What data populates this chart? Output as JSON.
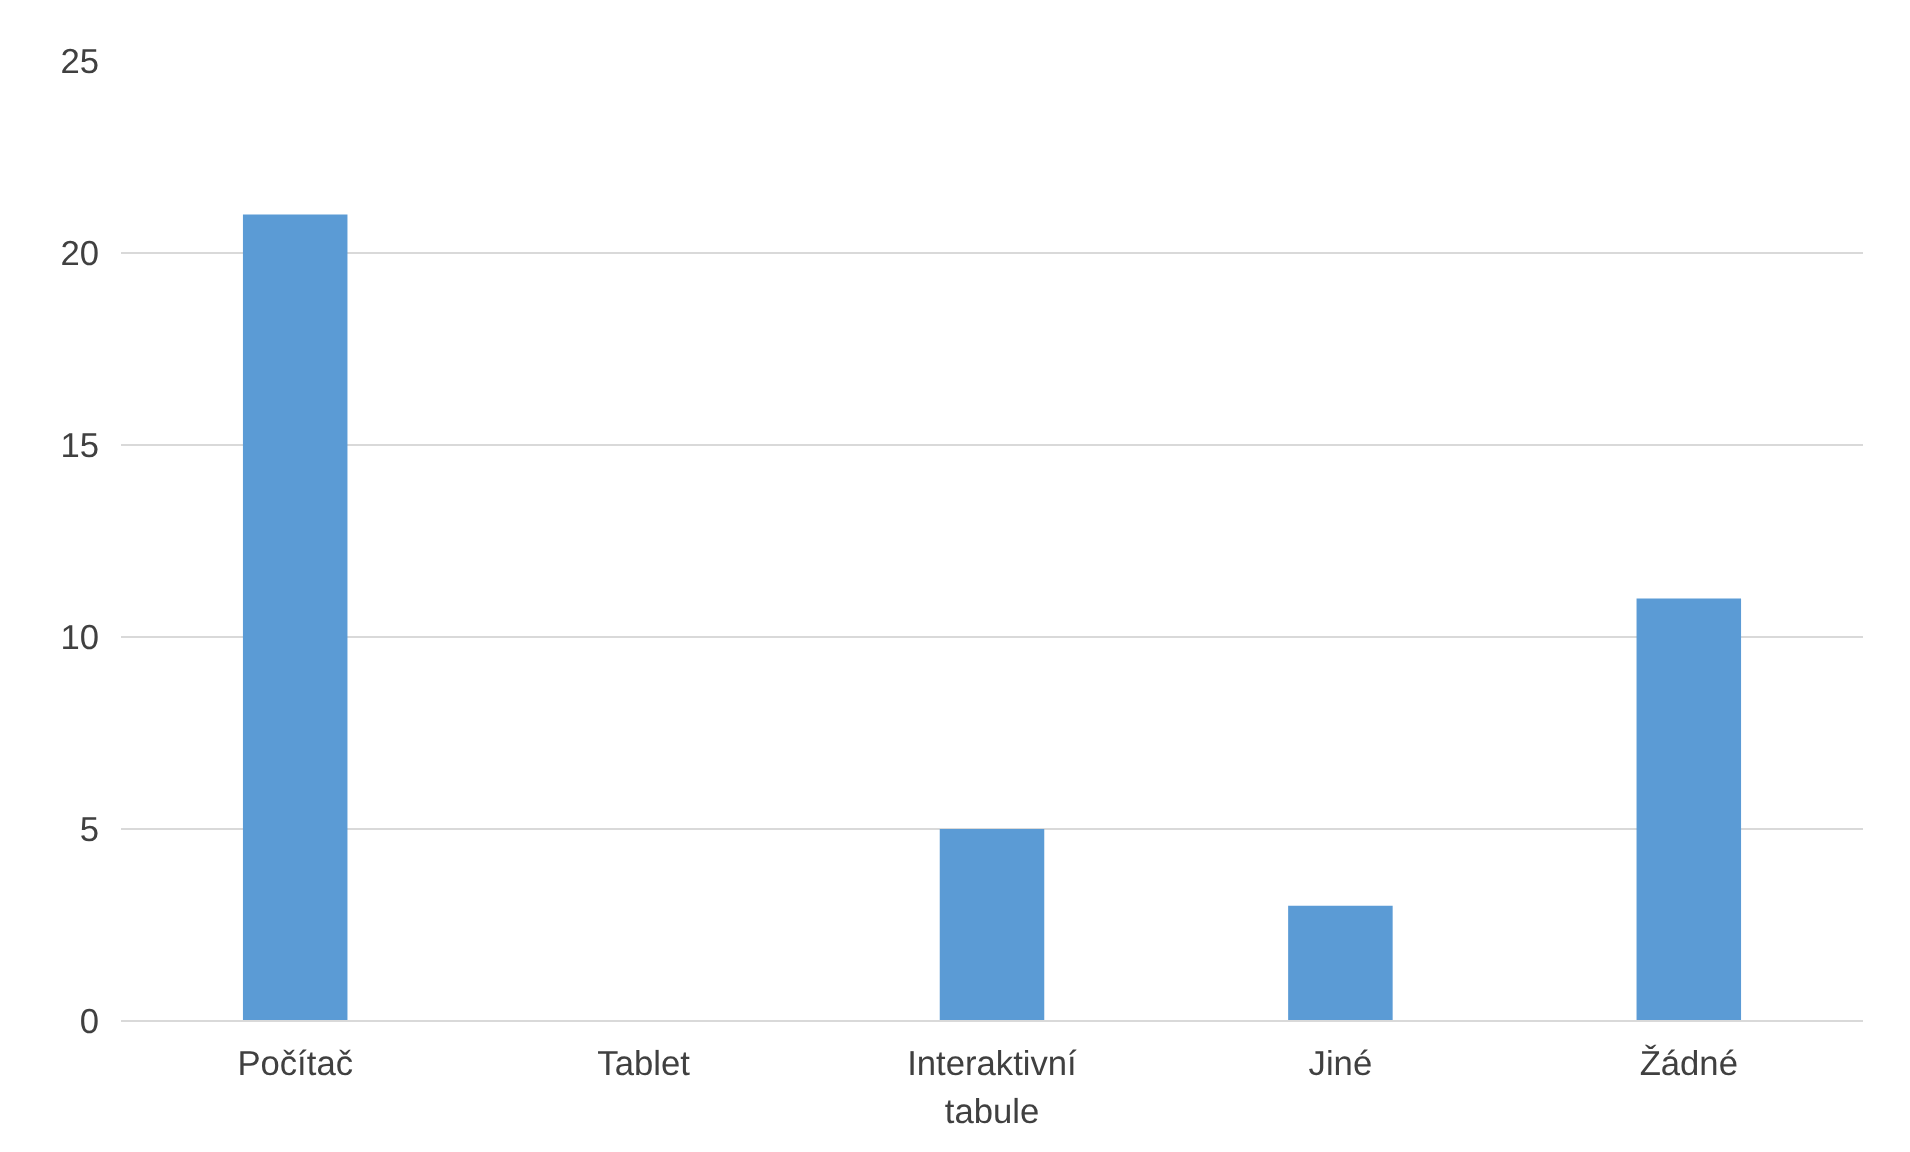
{
  "chart_data": {
    "type": "bar",
    "categories": [
      "Počítač",
      "Tablet",
      "Interaktivní tabule",
      "Jiné",
      "Žádné"
    ],
    "values": [
      21,
      0,
      5,
      3,
      11
    ],
    "color": "#5b9bd5",
    "ylim": [
      0,
      25
    ],
    "yticks": [
      0,
      5,
      10,
      15,
      20,
      25
    ],
    "grid": "y"
  }
}
